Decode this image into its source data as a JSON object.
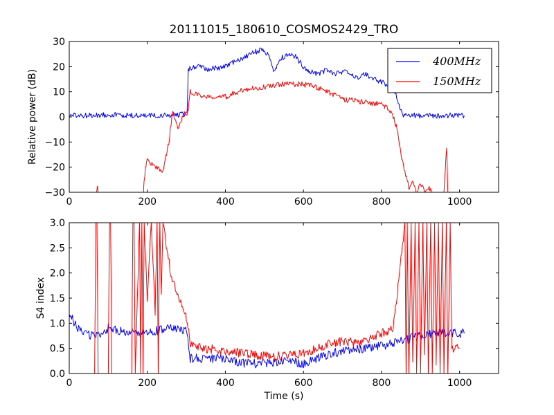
{
  "title": "20111015_180610_COSMOS2429_TRO",
  "chart_data": [
    {
      "type": "line",
      "ylabel": "Relative power (dB)",
      "xlabel": "",
      "xlim": [
        0,
        1100
      ],
      "ylim": [
        -30,
        30
      ],
      "xticks": [
        "0",
        "200",
        "400",
        "600",
        "800",
        "1000"
      ],
      "yticks": [
        "−30",
        "−20",
        "−10",
        "0",
        "10",
        "20",
        "30"
      ],
      "legend": {
        "placement": "top-right",
        "entries": [
          "400MHz",
          "150MHz"
        ]
      },
      "series": [
        {
          "name": "400MHz",
          "color": "#0000ff",
          "x": [
            0,
            50,
            100,
            150,
            200,
            250,
            295,
            302,
            305,
            330,
            360,
            400,
            440,
            470,
            490,
            510,
            525,
            540,
            560,
            580,
            600,
            620,
            640,
            660,
            680,
            700,
            720,
            740,
            760,
            780,
            800,
            820,
            835,
            845,
            850,
            858,
            870,
            900,
            950,
            1000,
            1012
          ],
          "y": [
            0.5,
            0.5,
            1,
            0.5,
            0.5,
            0.5,
            1,
            2,
            19,
            20,
            19,
            20,
            23,
            25.5,
            26.5,
            25,
            18,
            23,
            25,
            24,
            20,
            18,
            17,
            19,
            17,
            18,
            17,
            16,
            17,
            15,
            14,
            12,
            10,
            5,
            2,
            0.5,
            0.5,
            0.5,
            0.5,
            0.5,
            0.5
          ]
        },
        {
          "name": "150MHz",
          "color": "#ff0000",
          "x": [
            0,
            70,
            72,
            74,
            100,
            150,
            190,
            195,
            200,
            220,
            240,
            255,
            265,
            280,
            295,
            300,
            305,
            310,
            320,
            350,
            400,
            450,
            500,
            550,
            600,
            650,
            700,
            750,
            800,
            820,
            830,
            840,
            850,
            860,
            870,
            880,
            890,
            900,
            910,
            920,
            930,
            950,
            960,
            967,
            970,
            975,
            1000
          ],
          "y": [
            -30,
            -30,
            -28,
            -30,
            -30,
            -30,
            -30,
            -20,
            -17,
            -20,
            -22,
            -10,
            2,
            -5,
            2,
            0,
            3,
            10,
            9,
            8,
            8,
            11,
            12,
            13,
            13,
            11,
            7,
            6,
            5,
            3,
            0,
            -5,
            -15,
            -22,
            -28,
            -25,
            -30,
            -26,
            -30,
            -28,
            -30,
            -30,
            -30,
            -12,
            -30,
            -30,
            -30
          ]
        }
      ]
    },
    {
      "type": "line",
      "ylabel": "S4 index",
      "xlabel": "Time (s)",
      "xlim": [
        0,
        1100
      ],
      "ylim": [
        0,
        3
      ],
      "xticks": [
        "0",
        "200",
        "400",
        "600",
        "800",
        "1000"
      ],
      "yticks": [
        "0.0",
        "0.5",
        "1.0",
        "1.5",
        "2.0",
        "2.5",
        "3.0"
      ],
      "series": [
        {
          "name": "400MHz",
          "color": "#0000ff",
          "x": [
            0,
            20,
            40,
            60,
            80,
            100,
            150,
            200,
            250,
            300,
            310,
            350,
            400,
            450,
            500,
            550,
            600,
            650,
            700,
            750,
            800,
            850,
            900,
            950,
            1000,
            1012
          ],
          "y": [
            1.2,
            0.9,
            0.8,
            0.75,
            0.8,
            0.9,
            0.8,
            0.8,
            0.9,
            0.85,
            0.3,
            0.3,
            0.3,
            0.2,
            0.2,
            0.25,
            0.2,
            0.35,
            0.45,
            0.5,
            0.55,
            0.65,
            0.75,
            0.8,
            0.8,
            0.8
          ]
        },
        {
          "name": "150MHz",
          "color": "#ff0000",
          "x": [
            0,
            65,
            68,
            71,
            74,
            100,
            103,
            106,
            109,
            160,
            163,
            166,
            169,
            180,
            183,
            186,
            189,
            192,
            200,
            210,
            220,
            225,
            228,
            232,
            236,
            240,
            250,
            260,
            280,
            300,
            310,
            350,
            400,
            450,
            500,
            550,
            600,
            650,
            700,
            750,
            800,
            830,
            860,
            863,
            866,
            870,
            876,
            880,
            886,
            890,
            896,
            900,
            906,
            910,
            916,
            920,
            926,
            930,
            936,
            940,
            946,
            950,
            956,
            960,
            966,
            970,
            976,
            980,
            1000
          ],
          "y": [
            0,
            0,
            3,
            3,
            0,
            0,
            3,
            3,
            0,
            0,
            3,
            3,
            0,
            3,
            0,
            3,
            0,
            3,
            1.5,
            3,
            1.2,
            3,
            0,
            3,
            1.5,
            3,
            2.5,
            2,
            1.5,
            1.1,
            0.6,
            0.5,
            0.45,
            0.4,
            0.35,
            0.35,
            0.4,
            0.55,
            0.65,
            0.6,
            0.8,
            0.9,
            3,
            0,
            3,
            0,
            3,
            0.2,
            3,
            0,
            3,
            0,
            3,
            0.3,
            3,
            0,
            3,
            0,
            3,
            0.2,
            3,
            0,
            3,
            0,
            3,
            0,
            3,
            0.5,
            0.5
          ]
        }
      ]
    }
  ]
}
